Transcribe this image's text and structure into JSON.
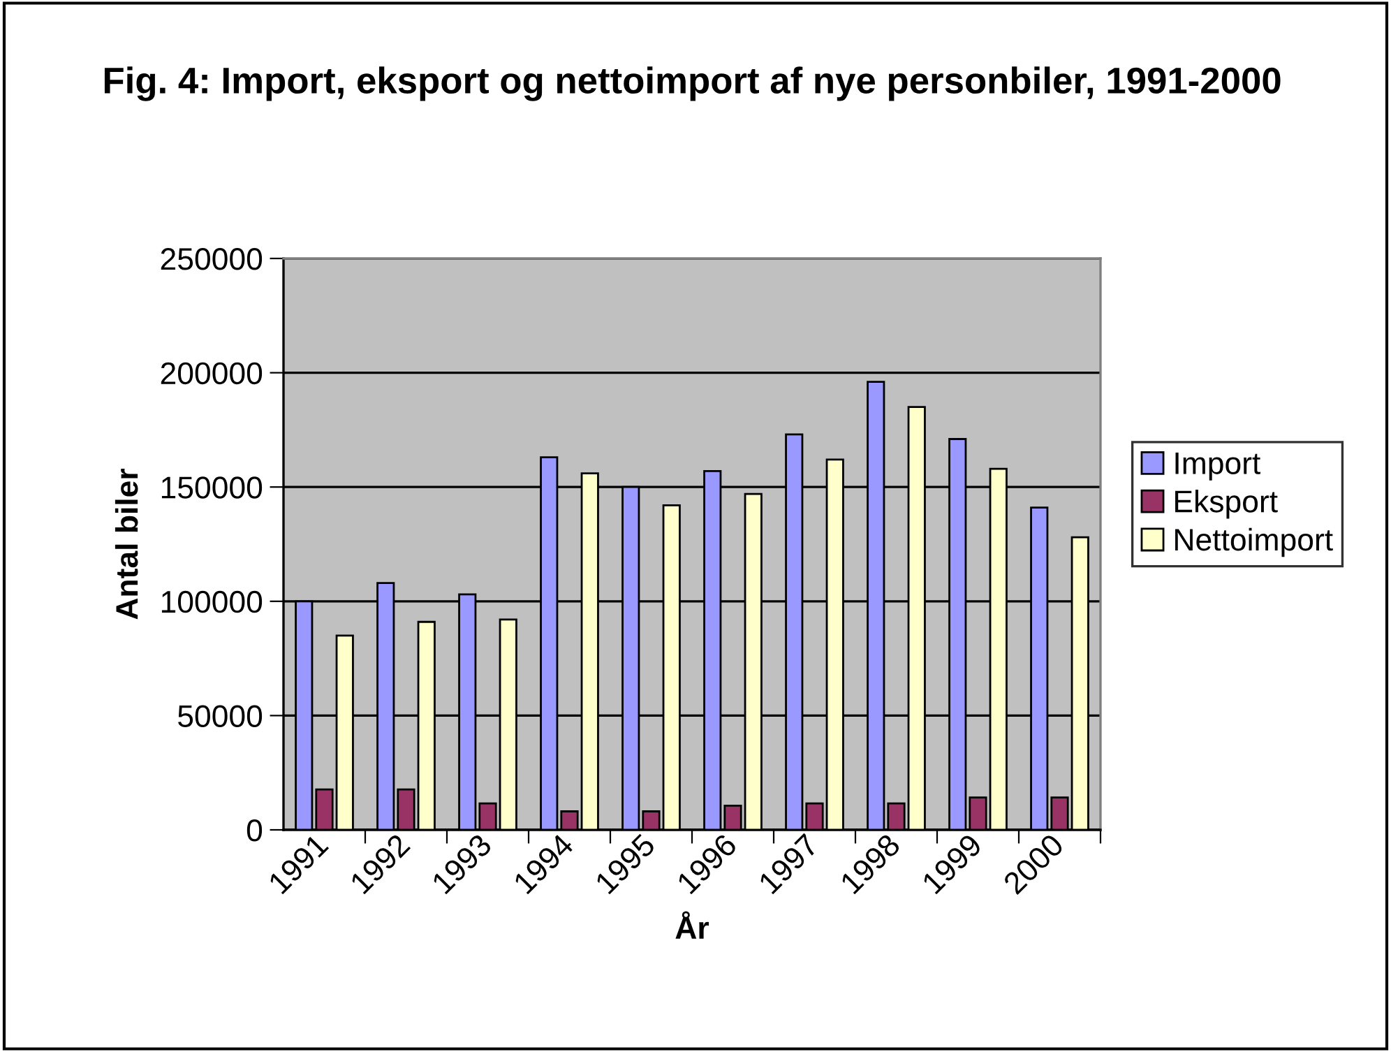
{
  "chart_data": {
    "type": "bar",
    "title": "Fig. 4: Import, eksport og nettoimport af nye personbiler, 1991-2000",
    "xlabel": "År",
    "ylabel": "Antal biler",
    "categories": [
      "1991",
      "1992",
      "1993",
      "1994",
      "1995",
      "1996",
      "1997",
      "1998",
      "1999",
      "2000"
    ],
    "series": [
      {
        "name": "Import",
        "color": "#9999ff",
        "values": [
          100000,
          108000,
          103000,
          163000,
          150000,
          157000,
          173000,
          196000,
          171000,
          141000
        ]
      },
      {
        "name": "Eksport",
        "color": "#993366",
        "values": [
          17700,
          17700,
          11600,
          8100,
          8100,
          10600,
          11600,
          11600,
          14200,
          14200
        ]
      },
      {
        "name": "Nettoimport",
        "color": "#ffffcc",
        "values": [
          85000,
          91000,
          92000,
          156000,
          142000,
          147000,
          162000,
          185000,
          158000,
          128000
        ]
      }
    ],
    "ylim": [
      0,
      250000
    ],
    "yticks": [
      0,
      50000,
      100000,
      150000,
      200000,
      250000
    ],
    "grid": "y",
    "legend": "right"
  }
}
